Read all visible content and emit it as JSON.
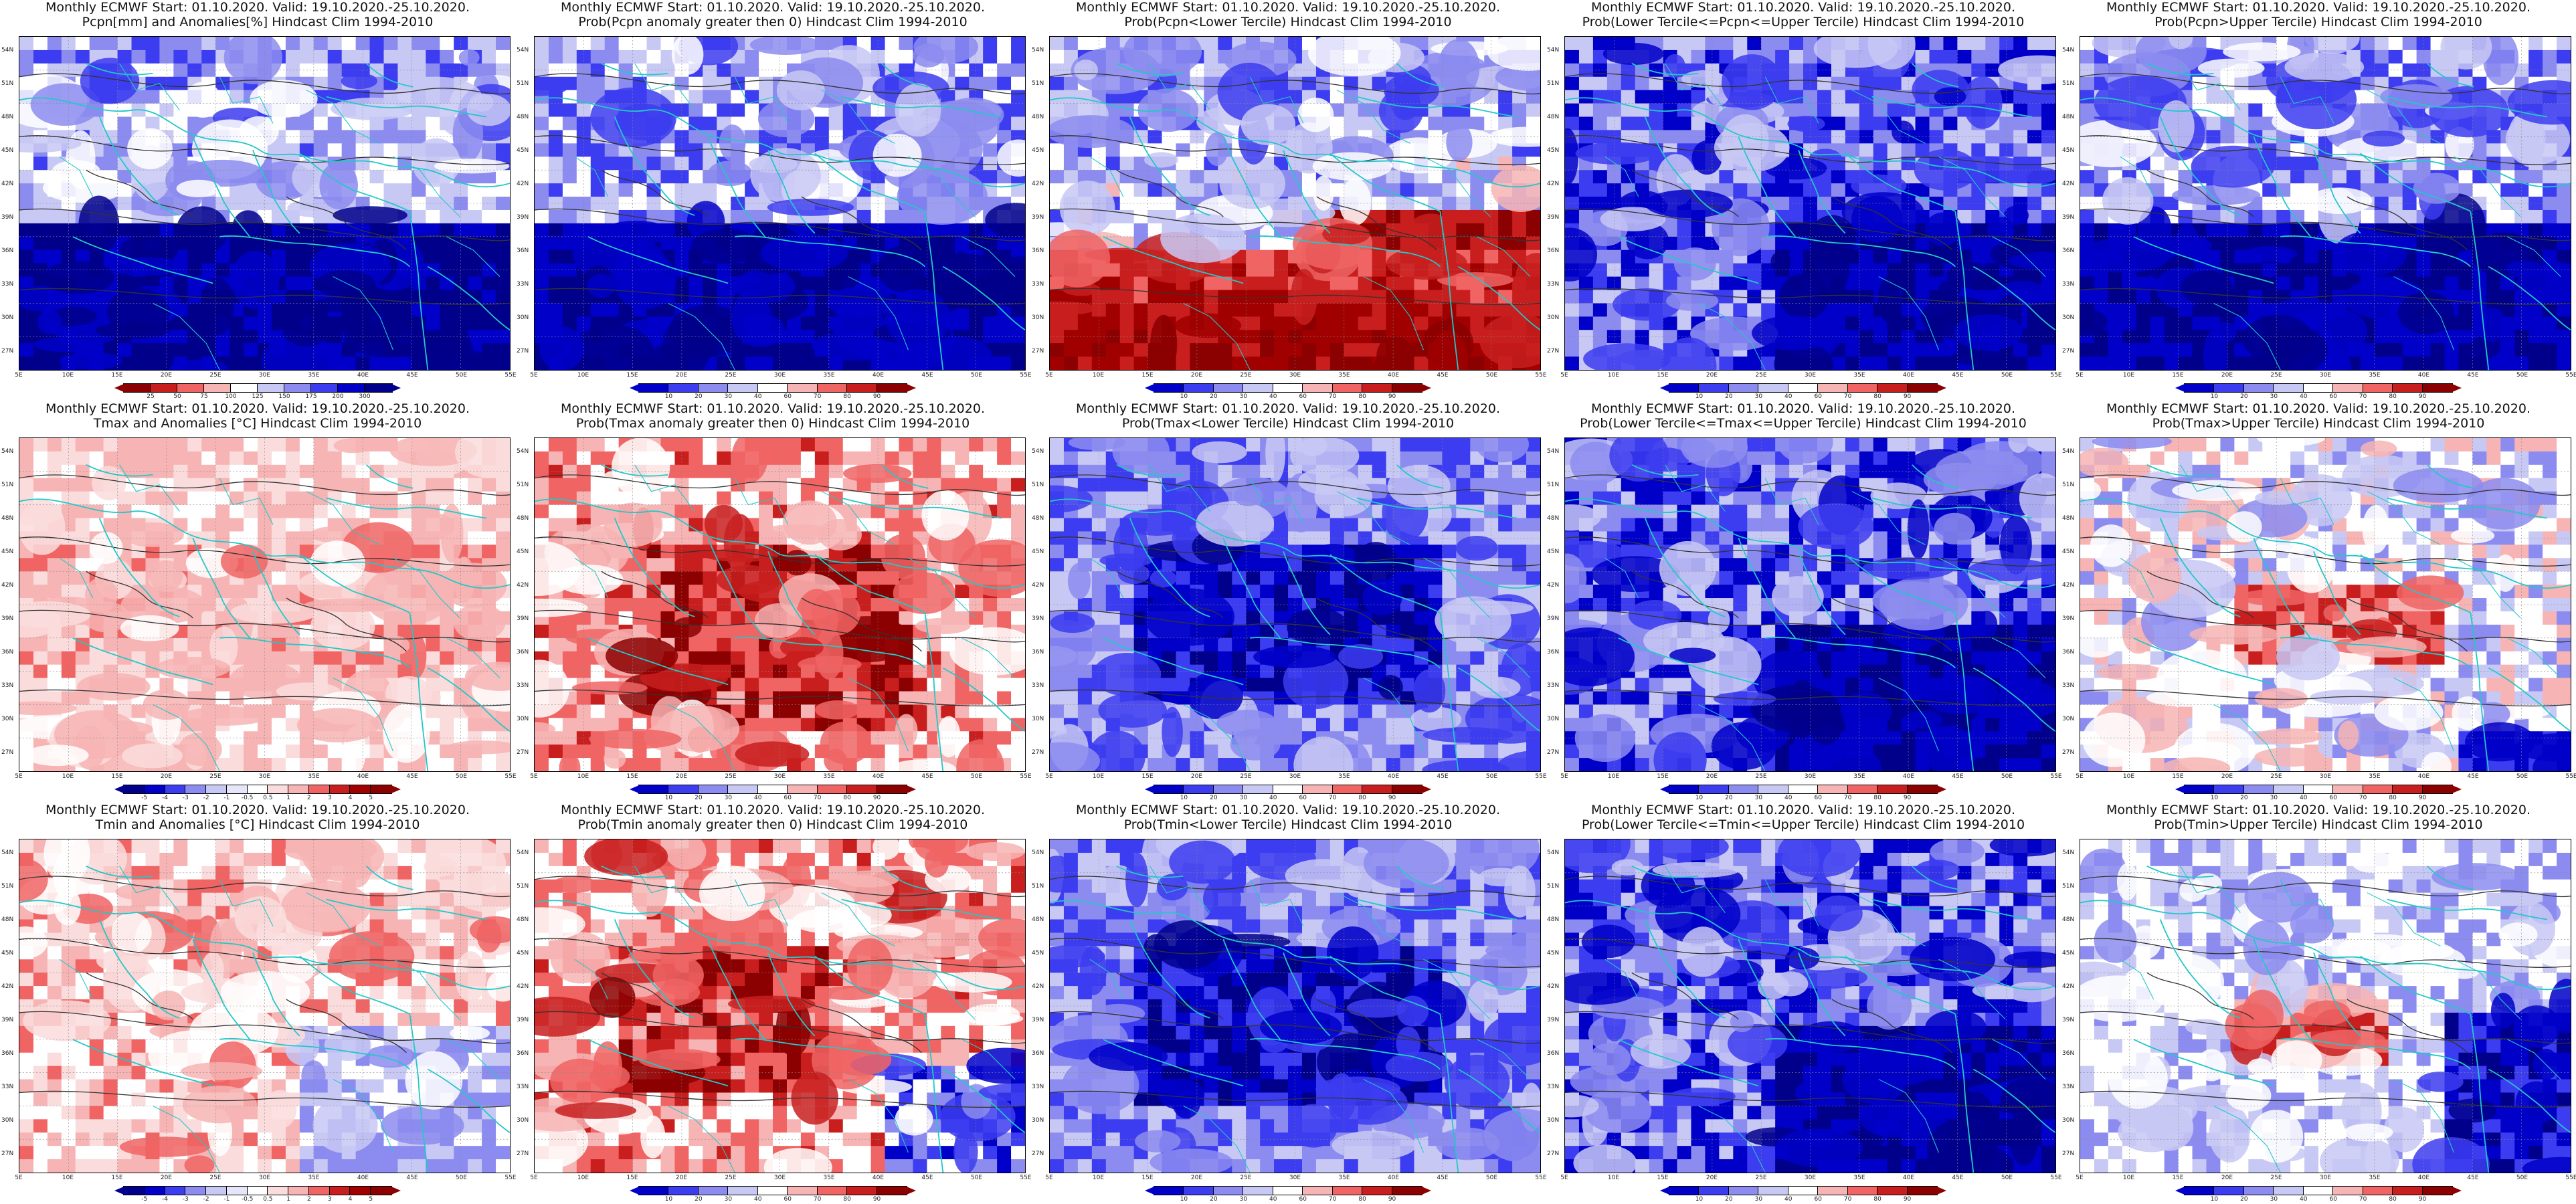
{
  "panels": [
    {
      "line1": "Monthly ECMWF Start: 01.10.2020. Valid: 19.10.2020.-25.10.2020.",
      "line2": "Pcpn[mm] and Anomalies[%] Hindcast Clim 1994-2010",
      "scheme": "pcpn_anom",
      "cbar": "anom_pct"
    },
    {
      "line1": "Monthly ECMWF Start: 01.10.2020. Valid: 19.10.2020.-25.10.2020.",
      "line2": "Prob(Pcpn anomaly greater then 0) Hindcast Clim 1994-2010",
      "scheme": "prob_blue",
      "cbar": "prob"
    },
    {
      "line1": "Monthly ECMWF Start: 01.10.2020. Valid: 19.10.2020.-25.10.2020.",
      "line2": "Prob(Pcpn<Lower Tercile) Hindcast Clim 1994-2010",
      "scheme": "prob_lower_pcpn",
      "cbar": "prob"
    },
    {
      "line1": "Monthly ECMWF Start: 01.10.2020. Valid: 19.10.2020.-25.10.2020.",
      "line2": "Prob(Lower Tercile<=Pcpn<=Upper Tercile) Hindcast Clim 1994-2010",
      "scheme": "prob_blue_mid",
      "cbar": "prob"
    },
    {
      "line1": "Monthly ECMWF Start: 01.10.2020. Valid: 19.10.2020.-25.10.2020.",
      "line2": "Prob(Pcpn>Upper Tercile) Hindcast Clim 1994-2010",
      "scheme": "prob_blue",
      "cbar": "prob"
    },
    {
      "line1": "Monthly ECMWF Start: 01.10.2020. Valid: 19.10.2020.-25.10.2020.",
      "line2": "Tmax and Anomalies [°C] Hindcast Clim 1994-2010",
      "scheme": "temp_anom_warm",
      "cbar": "anom_deg"
    },
    {
      "line1": "Monthly ECMWF Start: 01.10.2020. Valid: 19.10.2020.-25.10.2020.",
      "line2": "Prob(Tmax anomaly greater then 0) Hindcast Clim 1994-2010",
      "scheme": "prob_red",
      "cbar": "prob"
    },
    {
      "line1": "Monthly ECMWF Start: 01.10.2020. Valid: 19.10.2020.-25.10.2020.",
      "line2": "Prob(Tmax<Lower Tercile) Hindcast Clim 1994-2010",
      "scheme": "prob_blue_strong",
      "cbar": "prob"
    },
    {
      "line1": "Monthly ECMWF Start: 01.10.2020. Valid: 19.10.2020.-25.10.2020.",
      "line2": "Prob(Lower Tercile<=Tmax<=Upper Tercile) Hindcast Clim 1994-2010",
      "scheme": "prob_blue_mid",
      "cbar": "prob"
    },
    {
      "line1": "Monthly ECMWF Start: 01.10.2020. Valid: 19.10.2020.-25.10.2020.",
      "line2": "Prob(Tmax>Upper Tercile) Hindcast Clim 1994-2010",
      "scheme": "prob_upper_temp",
      "cbar": "prob"
    },
    {
      "line1": "Monthly ECMWF Start: 01.10.2020. Valid: 19.10.2020.-25.10.2020.",
      "line2": "Tmin and Anomalies [°C] Hindcast Clim 1994-2010",
      "scheme": "temp_anom_mixed",
      "cbar": "anom_deg"
    },
    {
      "line1": "Monthly ECMWF Start: 01.10.2020. Valid: 19.10.2020.-25.10.2020.",
      "line2": "Prob(Tmin anomaly greater then 0) Hindcast Clim 1994-2010",
      "scheme": "prob_red_blueSE",
      "cbar": "prob"
    },
    {
      "line1": "Monthly ECMWF Start: 01.10.2020. Valid: 19.10.2020.-25.10.2020.",
      "line2": "Prob(Tmin<Lower Tercile) Hindcast Clim 1994-2010",
      "scheme": "prob_blue_strong",
      "cbar": "prob"
    },
    {
      "line1": "Monthly ECMWF Start: 01.10.2020. Valid: 19.10.2020.-25.10.2020.",
      "line2": "Prob(Lower Tercile<=Tmin<=Upper Tercile) Hindcast Clim 1994-2010",
      "scheme": "prob_blue_mid",
      "cbar": "prob"
    },
    {
      "line1": "Monthly ECMWF Start: 01.10.2020. Valid: 19.10.2020.-25.10.2020.",
      "line2": "Prob(Tmin>Upper Tercile) Hindcast Clim 1994-2010",
      "scheme": "prob_upper_temp_blueSE",
      "cbar": "prob"
    }
  ],
  "lat_labels": [
    "54N",
    "51N",
    "48N",
    "45N",
    "42N",
    "39N",
    "36N",
    "33N",
    "30N",
    "27N"
  ],
  "lon_labels": [
    "5E",
    "10E",
    "15E",
    "20E",
    "25E",
    "30E",
    "35E",
    "40E",
    "45E",
    "50E",
    "55E"
  ],
  "colorbars": {
    "anom_pct": {
      "labels": [
        "25",
        "50",
        "75",
        "100",
        "125",
        "150",
        "175",
        "200",
        "300"
      ],
      "colors": [
        "#8b0000",
        "#c81e1e",
        "#f06464",
        "#f7b4b4",
        "#ffffff",
        "#c8c8f5",
        "#8c8cf0",
        "#3c3cf0",
        "#0000c8",
        "#00008b"
      ],
      "tips": [
        "#8b0000",
        "#00008b"
      ]
    },
    "anom_deg": {
      "labels": [
        "-5",
        "-4",
        "-3",
        "-2",
        "-1",
        "-0.5",
        "0.5",
        "1",
        "2",
        "3",
        "4",
        "5"
      ],
      "colors": [
        "#00008b",
        "#0000c8",
        "#3c3cf0",
        "#8c8cf0",
        "#c8c8f5",
        "#e6e6fa",
        "#ffffff",
        "#fadcdc",
        "#f7b4b4",
        "#f06464",
        "#c81e1e",
        "#a00000",
        "#8b0000"
      ],
      "tips": [
        "#00008b",
        "#8b0000"
      ]
    },
    "prob": {
      "labels": [
        "10",
        "20",
        "30",
        "40",
        "60",
        "70",
        "80",
        "90"
      ],
      "colors": [
        "#0000c8",
        "#3c3cf0",
        "#8c8cf0",
        "#c8c8f5",
        "#ffffff",
        "#f7b4b4",
        "#f06464",
        "#c81e1e",
        "#8b0000"
      ],
      "tips": [
        "#0000c8",
        "#8b0000"
      ]
    }
  }
}
